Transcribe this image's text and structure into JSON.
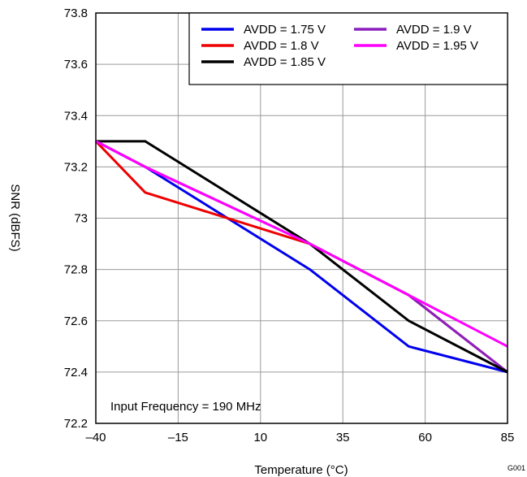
{
  "chart_data": {
    "type": "line",
    "xlabel": "Temperature (°C)",
    "ylabel": "SNR (dBFS)",
    "xlim": [
      -40,
      85
    ],
    "ylim": [
      72.2,
      73.8
    ],
    "x_ticks": [
      -40,
      -15,
      10,
      35,
      60,
      85
    ],
    "x_tick_labels": [
      "–40",
      "–15",
      "10",
      "35",
      "60",
      "85"
    ],
    "y_ticks": [
      72.2,
      72.4,
      72.6,
      72.8,
      73,
      73.2,
      73.4,
      73.6,
      73.8
    ],
    "y_tick_labels": [
      "72.2",
      "72.4",
      "72.6",
      "72.8",
      "73",
      "73.2",
      "73.4",
      "73.6",
      "73.8"
    ],
    "grid": true,
    "legend_position": "top-right",
    "annotation": "Input Frequency = 190 MHz",
    "figure_code": "G001",
    "series": [
      {
        "name": "AVDD = 1.75 V",
        "color": "#0000ee",
        "x": [
          -40,
          -25,
          25,
          55,
          85
        ],
        "y": [
          73.3,
          73.2,
          72.8,
          72.5,
          72.4
        ]
      },
      {
        "name": "AVDD = 1.8 V",
        "color": "#ee0000",
        "x": [
          -40,
          -25,
          25,
          55,
          85
        ],
        "y": [
          73.3,
          73.1,
          72.9,
          72.7,
          72.4
        ]
      },
      {
        "name": "AVDD = 1.85 V",
        "color": "#000000",
        "x": [
          -40,
          -25,
          25,
          55,
          85
        ],
        "y": [
          73.3,
          73.3,
          72.9,
          72.6,
          72.4
        ]
      },
      {
        "name": "AVDD = 1.9 V",
        "color": "#8b1fbf",
        "x": [
          -40,
          -25,
          25,
          55,
          85
        ],
        "y": [
          73.3,
          73.2,
          72.9,
          72.7,
          72.4
        ]
      },
      {
        "name": "AVDD = 1.95 V",
        "color": "#ff00ff",
        "x": [
          -40,
          -25,
          25,
          55,
          85
        ],
        "y": [
          73.3,
          73.2,
          72.9,
          72.7,
          72.5
        ]
      }
    ]
  }
}
